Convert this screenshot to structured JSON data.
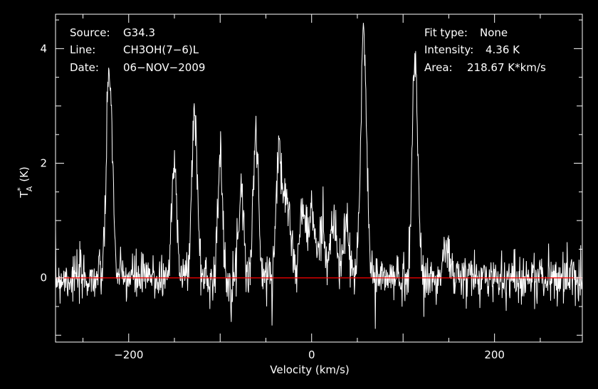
{
  "chart_data": {
    "type": "line",
    "xlabel": "Velocity (km/s)",
    "ylabel": "T",
    "ylabel_sup": "*",
    "ylabel_sub": "A",
    "ylabel_unit": "(K)",
    "xlim": [
      -280,
      296
    ],
    "ylim": [
      -1.12,
      4.6
    ],
    "xticks": [
      -200,
      0,
      200
    ],
    "xtick_labels": [
      "−200",
      "0",
      "200"
    ],
    "yticks": [
      0,
      2,
      4
    ],
    "ytick_labels": [
      "0",
      "2",
      "4"
    ],
    "baseline": 0,
    "colors": {
      "background": "#000000",
      "trace": "#ffffff",
      "baseline": "#ff0000",
      "axes": "#ffffff"
    },
    "peaks": [
      {
        "v": -221,
        "t": 3.65,
        "w": 3.2
      },
      {
        "v": -150,
        "t": 1.95,
        "w": 3.0
      },
      {
        "v": -128,
        "t": 2.9,
        "w": 3.0
      },
      {
        "v": -100,
        "t": 2.05,
        "w": 2.6
      },
      {
        "v": -77,
        "t": 1.7,
        "w": 2.6
      },
      {
        "v": -61,
        "t": 2.55,
        "w": 2.8
      },
      {
        "v": -36,
        "t": 2.1,
        "w": 3.0
      },
      {
        "v": -27,
        "t": 1.55,
        "w": 4.0
      },
      {
        "v": -10,
        "t": 1.2,
        "w": 3.0
      },
      {
        "v": 0,
        "t": 1.1,
        "w": 4.0
      },
      {
        "v": 12,
        "t": 0.9,
        "w": 3.0
      },
      {
        "v": 24,
        "t": 0.95,
        "w": 3.5
      },
      {
        "v": 38,
        "t": 0.95,
        "w": 3.0
      },
      {
        "v": 57,
        "t": 4.3,
        "w": 3.2
      },
      {
        "v": 113,
        "t": 3.9,
        "w": 3.0
      },
      {
        "v": 148,
        "t": 0.55,
        "w": 3.0
      }
    ],
    "noise_sigma": 0.22,
    "annotations_left": [
      {
        "label": "Source:",
        "value": "G34.3"
      },
      {
        "label": "Line:",
        "value": "CH3OH(7−6)L"
      },
      {
        "label": "Date:",
        "value": "06−NOV−2009"
      }
    ],
    "annotations_right": [
      {
        "label": "Fit type:",
        "value": "None"
      },
      {
        "label": "Intensity:",
        "value": "4.36 K"
      },
      {
        "label": "Area:",
        "value": "218.67 K*km/s"
      }
    ]
  }
}
